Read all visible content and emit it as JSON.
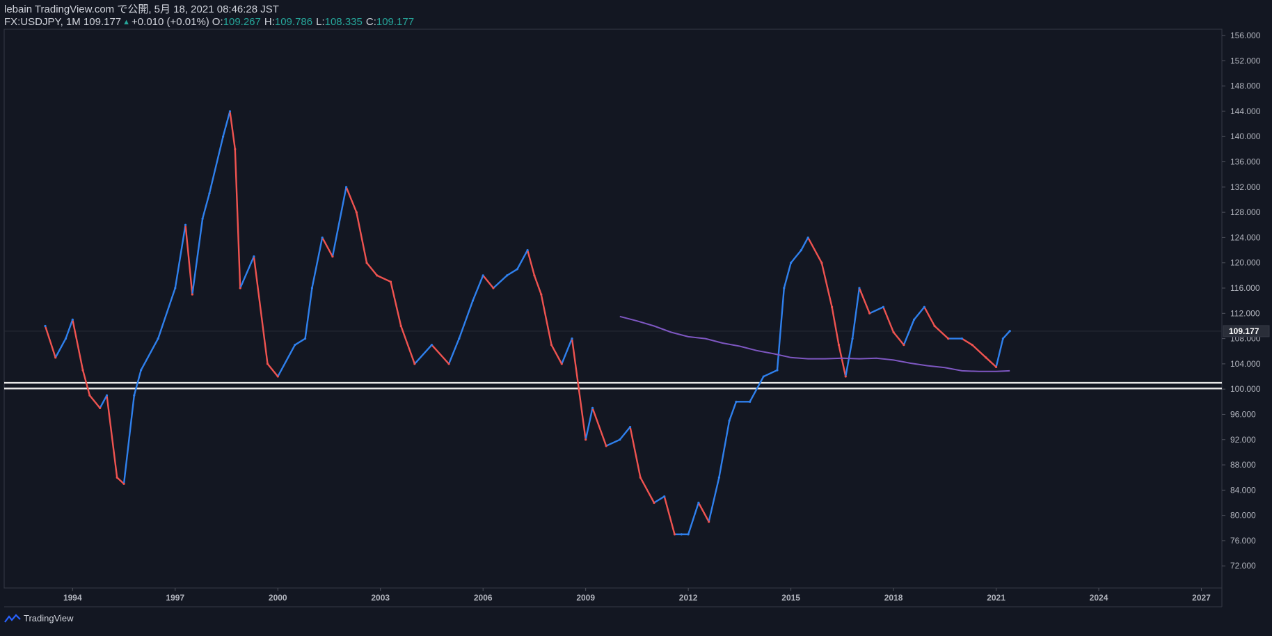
{
  "header": {
    "publish_line": "lebain TradingView.com で公開, 5月 18, 2021 08:46:28 JST",
    "symbol": "FX:USDJPY, 1M 109.177",
    "change": "+0.010 (+0.01%)",
    "o_label": "O:",
    "o_value": "109.267",
    "h_label": "H:",
    "h_value": "109.786",
    "l_label": "L:",
    "l_value": "108.335",
    "c_label": "C:",
    "c_value": "109.177"
  },
  "footer": {
    "brand": "TradingView"
  },
  "colors": {
    "bg": "#131722",
    "up": "#2f80ed",
    "down": "#ef5350",
    "ma": "#7e57c2",
    "grid": "#1c2030",
    "axis_text": "#b2b5be"
  },
  "chart_data": {
    "type": "line",
    "symbol": "FX:USDJPY",
    "interval": "1M",
    "x_range": [
      1992.0,
      2027.6
    ],
    "ylim": [
      68.5,
      157
    ],
    "y_ticks": [
      "72.000",
      "76.000",
      "80.000",
      "84.000",
      "88.000",
      "92.000",
      "96.000",
      "100.000",
      "104.000",
      "108.000",
      "112.000",
      "116.000",
      "120.000",
      "124.000",
      "128.000",
      "132.000",
      "136.000",
      "140.000",
      "144.000",
      "148.000",
      "152.000",
      "156.000"
    ],
    "x_ticks": [
      "1994",
      "1997",
      "2000",
      "2003",
      "2006",
      "2009",
      "2012",
      "2015",
      "2018",
      "2021",
      "2024",
      "2027"
    ],
    "last_price_label": "109.177",
    "last_price": 109.177,
    "series": [
      {
        "x": [
          1993.2,
          1993.5,
          1993.8,
          1994.0,
          1994.3,
          1994.5,
          1994.8,
          1995.0,
          1995.3,
          1995.5,
          1995.8,
          1996.0,
          1996.5,
          1997.0,
          1997.3,
          1997.5,
          1997.8,
          1998.0,
          1998.4,
          1998.6,
          1998.75,
          1998.9,
          1999.3,
          1999.7,
          2000.0,
          2000.5,
          2000.8,
          2001.0,
          2001.3,
          2001.6,
          2002.0,
          2002.3,
          2002.6,
          2002.9,
          2003.3,
          2003.6,
          2004.0,
          2004.5,
          2005.0,
          2005.3,
          2005.7,
          2006.0,
          2006.3,
          2006.7,
          2007.0,
          2007.3,
          2007.5,
          2007.7,
          2008.0,
          2008.3,
          2008.6,
          2008.8,
          2009.0,
          2009.2,
          2009.6,
          2010.0,
          2010.3,
          2010.6,
          2011.0,
          2011.3,
          2011.6,
          2011.8,
          2012.0,
          2012.3,
          2012.6,
          2012.9,
          2013.2,
          2013.4,
          2013.8,
          2014.2,
          2014.6,
          2014.8,
          2015.0,
          2015.3,
          2015.5,
          2015.9,
          2016.2,
          2016.4,
          2016.6,
          2016.8,
          2017.0,
          2017.3,
          2017.7,
          2018.0,
          2018.3,
          2018.6,
          2018.9,
          2019.2,
          2019.6,
          2020.0,
          2020.3,
          2020.7,
          2021.0,
          2021.2,
          2021.4
        ],
        "y": [
          110.0,
          105.0,
          108.0,
          111.0,
          103.0,
          99.0,
          97.0,
          99.0,
          86.0,
          85.0,
          99.0,
          103.0,
          108.0,
          116.0,
          126.0,
          115.0,
          127.0,
          131.0,
          140.0,
          144.0,
          138.0,
          116.0,
          121.0,
          104.0,
          102.0,
          107.0,
          108.0,
          116.0,
          124.0,
          121.0,
          132.0,
          128.0,
          120.0,
          118.0,
          117.0,
          110.0,
          104.0,
          107.0,
          104.0,
          108.0,
          114.0,
          118.0,
          116.0,
          118.0,
          119.0,
          122.0,
          118.0,
          115.0,
          107.0,
          104.0,
          108.0,
          100.0,
          92.0,
          97.0,
          91.0,
          92.0,
          94.0,
          86.0,
          82.0,
          83.0,
          77.0,
          77.0,
          77.0,
          82.0,
          79.0,
          86.0,
          95.0,
          98.0,
          98.0,
          102.0,
          103.0,
          116.0,
          120.0,
          122.0,
          124.0,
          120.0,
          113.0,
          107.0,
          102.0,
          108.0,
          116.0,
          112.0,
          113.0,
          109.0,
          107.0,
          111.0,
          113.0,
          110.0,
          108.0,
          108.0,
          107.0,
          105.0,
          103.5,
          108.0,
          109.2
        ],
        "color": "#2f80ed"
      },
      {
        "x": [
          2010.0,
          2010.5,
          2011.0,
          2011.5,
          2012.0,
          2012.5,
          2013.0,
          2013.5,
          2014.0,
          2014.5,
          2015.0,
          2015.5,
          2016.0,
          2016.5,
          2017.0,
          2017.5,
          2018.0,
          2018.5,
          2019.0,
          2019.5,
          2020.0,
          2020.5,
          2021.0,
          2021.4
        ],
        "y": [
          111.5,
          110.8,
          110.0,
          109.0,
          108.3,
          108.0,
          107.3,
          106.8,
          106.1,
          105.6,
          105.0,
          104.8,
          104.8,
          104.9,
          104.8,
          104.9,
          104.6,
          104.1,
          103.7,
          103.4,
          102.9,
          102.8,
          102.8,
          102.9
        ],
        "color": "#7e57c2"
      }
    ],
    "levels": [
      101.0,
      100.1
    ]
  }
}
